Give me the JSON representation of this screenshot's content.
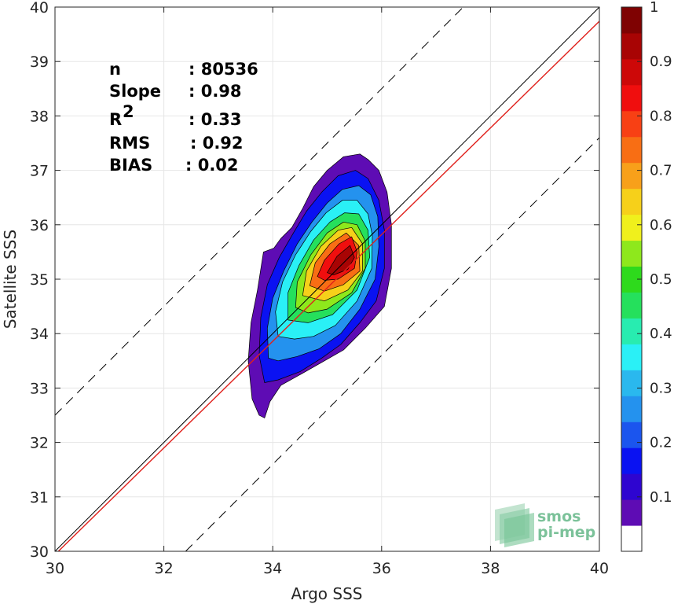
{
  "chart_data": {
    "type": "contour",
    "xlabel": "Argo SSS",
    "ylabel": "Satellite SSS",
    "xlim": [
      30,
      40
    ],
    "ylim": [
      30,
      40
    ],
    "x_ticks": [
      "30",
      "32",
      "34",
      "36",
      "38",
      "40"
    ],
    "y_ticks": [
      "30",
      "31",
      "32",
      "33",
      "34",
      "35",
      "36",
      "37",
      "38",
      "39",
      "40"
    ],
    "grid": true,
    "stats": [
      {
        "label": "n",
        "sup": "",
        "value": ": 80536"
      },
      {
        "label": "Slope",
        "sup": "",
        "value": ": 0.98"
      },
      {
        "label": "R",
        "sup": "2",
        "value": ": 0.33"
      },
      {
        "label": "RMS",
        "sup": "",
        "value": ": 0.92"
      },
      {
        "label": "BIAS",
        "sup": "",
        "value": ": 0.02"
      }
    ],
    "reference_lines": [
      {
        "name": "identity",
        "style": "solid",
        "color": "#000000",
        "points": [
          [
            30,
            30
          ],
          [
            40,
            40
          ]
        ]
      },
      {
        "name": "regression",
        "style": "solid",
        "color": "#e0201b",
        "points": [
          [
            30,
            29.94
          ],
          [
            40,
            39.74
          ]
        ]
      },
      {
        "name": "upper-bound",
        "style": "dashed",
        "color": "#000000",
        "points": [
          [
            30,
            32.5
          ],
          [
            37.5,
            40
          ]
        ]
      },
      {
        "name": "lower-bound",
        "style": "dashed",
        "color": "#000000",
        "points": [
          [
            32.4,
            30
          ],
          [
            40,
            37.6
          ]
        ]
      }
    ],
    "density_center": [
      35.3,
      35.3
    ],
    "density_levels": [
      0.05,
      0.15,
      0.25,
      0.35,
      0.45,
      0.55,
      0.65,
      0.75,
      0.85,
      0.95
    ],
    "contours": [
      [
        [
          33.85,
          32.45
        ],
        [
          33.75,
          32.5
        ],
        [
          33.62,
          32.8
        ],
        [
          33.55,
          33.5
        ],
        [
          33.6,
          34.2
        ],
        [
          33.72,
          34.8
        ],
        [
          33.83,
          35.5
        ],
        [
          34.02,
          35.57
        ],
        [
          34.15,
          35.75
        ],
        [
          34.35,
          35.95
        ],
        [
          34.55,
          36.3
        ],
        [
          34.75,
          36.7
        ],
        [
          35,
          37.0
        ],
        [
          35.3,
          37.25
        ],
        [
          35.6,
          37.3
        ],
        [
          35.75,
          37.2
        ],
        [
          35.95,
          37.0
        ],
        [
          36.1,
          36.6
        ],
        [
          36.18,
          36.0
        ],
        [
          36.18,
          35.2
        ],
        [
          36.05,
          34.5
        ],
        [
          35.7,
          34.1
        ],
        [
          35.3,
          33.7
        ],
        [
          34.95,
          33.5
        ],
        [
          34.6,
          33.3
        ],
        [
          34.15,
          33.05
        ],
        [
          33.95,
          32.75
        ]
      ],
      [
        [
          33.85,
          33.1
        ],
        [
          33.75,
          33.6
        ],
        [
          33.78,
          34.3
        ],
        [
          33.9,
          34.9
        ],
        [
          34.12,
          35.4
        ],
        [
          34.38,
          35.85
        ],
        [
          34.62,
          36.25
        ],
        [
          34.9,
          36.6
        ],
        [
          35.2,
          36.9
        ],
        [
          35.52,
          37.0
        ],
        [
          35.75,
          36.85
        ],
        [
          35.95,
          36.45
        ],
        [
          36.05,
          35.9
        ],
        [
          36.05,
          35.2
        ],
        [
          35.9,
          34.6
        ],
        [
          35.6,
          34.2
        ],
        [
          35.25,
          33.8
        ],
        [
          34.9,
          33.55
        ],
        [
          34.5,
          33.3
        ],
        [
          34.1,
          33.15
        ]
      ],
      [
        [
          33.92,
          33.55
        ],
        [
          33.9,
          34.1
        ],
        [
          34.0,
          34.65
        ],
        [
          34.2,
          35.15
        ],
        [
          34.45,
          35.65
        ],
        [
          34.72,
          36.05
        ],
        [
          35.0,
          36.4
        ],
        [
          35.28,
          36.65
        ],
        [
          35.58,
          36.72
        ],
        [
          35.8,
          36.55
        ],
        [
          35.93,
          36.15
        ],
        [
          35.95,
          35.6
        ],
        [
          35.88,
          35.0
        ],
        [
          35.6,
          34.45
        ],
        [
          35.25,
          34.0
        ],
        [
          34.85,
          33.72
        ],
        [
          34.45,
          33.58
        ],
        [
          34.1,
          33.5
        ]
      ],
      [
        [
          34.1,
          33.95
        ],
        [
          34.05,
          34.4
        ],
        [
          34.18,
          34.95
        ],
        [
          34.42,
          35.45
        ],
        [
          34.7,
          35.88
        ],
        [
          34.98,
          36.22
        ],
        [
          35.28,
          36.45
        ],
        [
          35.55,
          36.45
        ],
        [
          35.75,
          36.2
        ],
        [
          35.83,
          35.8
        ],
        [
          35.82,
          35.2
        ],
        [
          35.55,
          34.6
        ],
        [
          35.15,
          34.15
        ],
        [
          34.75,
          33.95
        ],
        [
          34.4,
          33.9
        ]
      ],
      [
        [
          34.28,
          34.25
        ],
        [
          34.28,
          34.75
        ],
        [
          34.48,
          35.25
        ],
        [
          34.75,
          35.72
        ],
        [
          35.05,
          36.05
        ],
        [
          35.32,
          36.22
        ],
        [
          35.58,
          36.2
        ],
        [
          35.75,
          35.9
        ],
        [
          35.78,
          35.4
        ],
        [
          35.55,
          34.8
        ],
        [
          35.1,
          34.35
        ],
        [
          34.65,
          34.2
        ]
      ],
      [
        [
          34.42,
          34.48
        ],
        [
          34.45,
          34.95
        ],
        [
          34.7,
          35.45
        ],
        [
          35.0,
          35.85
        ],
        [
          35.3,
          36.05
        ],
        [
          35.55,
          36.0
        ],
        [
          35.7,
          35.7
        ],
        [
          35.7,
          35.2
        ],
        [
          35.45,
          34.75
        ],
        [
          35.0,
          34.45
        ],
        [
          34.65,
          34.38
        ]
      ],
      [
        [
          34.55,
          34.7
        ],
        [
          34.62,
          35.15
        ],
        [
          34.88,
          35.6
        ],
        [
          35.2,
          35.9
        ],
        [
          35.45,
          35.95
        ],
        [
          35.65,
          35.65
        ],
        [
          35.65,
          35.15
        ],
        [
          35.38,
          34.8
        ],
        [
          34.95,
          34.6
        ]
      ],
      [
        [
          34.68,
          34.88
        ],
        [
          34.78,
          35.3
        ],
        [
          35.05,
          35.65
        ],
        [
          35.35,
          35.85
        ],
        [
          35.58,
          35.62
        ],
        [
          35.6,
          35.15
        ],
        [
          35.3,
          34.9
        ],
        [
          34.95,
          34.78
        ]
      ],
      [
        [
          34.82,
          35.05
        ],
        [
          34.95,
          35.35
        ],
        [
          35.22,
          35.65
        ],
        [
          35.45,
          35.78
        ],
        [
          35.55,
          35.5
        ],
        [
          35.5,
          35.2
        ],
        [
          35.2,
          35.0
        ],
        [
          34.95,
          34.98
        ]
      ],
      [
        [
          35.0,
          35.12
        ],
        [
          35.18,
          35.42
        ],
        [
          35.42,
          35.62
        ],
        [
          35.5,
          35.4
        ],
        [
          35.38,
          35.18
        ],
        [
          35.12,
          35.08
        ]
      ]
    ],
    "colorbar": {
      "range": [
        0,
        1
      ],
      "ticks": [
        "0.1",
        "0.2",
        "0.3",
        "0.4",
        "0.5",
        "0.6",
        "0.7",
        "0.8",
        "0.9",
        "1"
      ],
      "tick_values": [
        0.1,
        0.2,
        0.3,
        0.4,
        0.5,
        0.6,
        0.7,
        0.8,
        0.9,
        1.0
      ],
      "colors": [
        "#ffffff",
        "#5e0cb4",
        "#2e05d0",
        "#0a12f2",
        "#1b55ee",
        "#2492ee",
        "#2ab8ee",
        "#2af0f6",
        "#28ecb0",
        "#25e05c",
        "#2eda1c",
        "#8ee81c",
        "#f0f01c",
        "#f6d01a",
        "#f8a01a",
        "#f86e14",
        "#f84014",
        "#f00e0e",
        "#cd0808",
        "#a80404",
        "#7f0202"
      ]
    },
    "logo": {
      "line1": "smos",
      "line2": "pi-mep"
    }
  }
}
